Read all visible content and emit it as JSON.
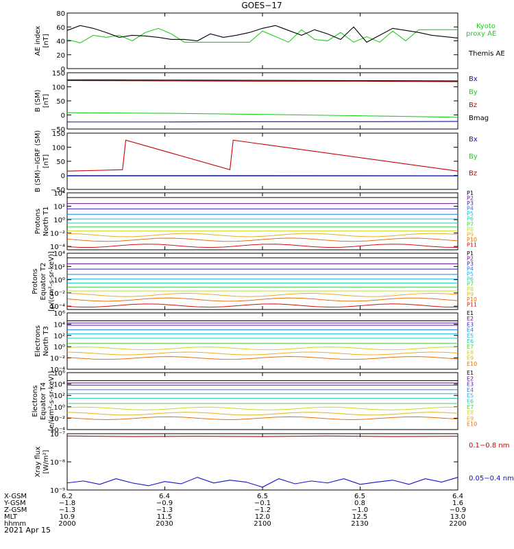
{
  "title": "GOES−17",
  "date_label": "2021 Apr 15",
  "colors": {
    "black": "#000000",
    "red": "#cc0000",
    "green": "#22cc22",
    "blue": "#1010c8",
    "spectrum": [
      "#000000",
      "#6a0d8a",
      "#3a1cc8",
      "#1f7ee0",
      "#18b8e8",
      "#20c8b0",
      "#40d040",
      "#c8d820",
      "#e8b020",
      "#e07010",
      "#d01010"
    ]
  },
  "chart_data": [
    {
      "type": "line",
      "name": "ae-index",
      "ylabel": [
        "AE index",
        "[nT]"
      ],
      "ylim": [
        0,
        80
      ],
      "yticks": [
        "0",
        "20",
        "40",
        "60",
        "80"
      ],
      "yvals": [
        0,
        20,
        40,
        60,
        80
      ],
      "scale": "linear",
      "xlim": [
        0,
        120
      ],
      "legend": [
        "Kyoto",
        "proxy AE",
        "Themis AE"
      ],
      "series": [
        {
          "name": "Kyoto proxy AE",
          "color": "green",
          "x": [
            0,
            4,
            8,
            12,
            16,
            20,
            24,
            28,
            32,
            36,
            40,
            44,
            48,
            52,
            56,
            60,
            64,
            68,
            72,
            76,
            80,
            84,
            88,
            92,
            96,
            100,
            104,
            108,
            112,
            116,
            120
          ],
          "y": [
            42,
            37,
            48,
            45,
            48,
            40,
            52,
            58,
            50,
            38,
            38,
            38,
            38,
            38,
            38,
            54,
            46,
            38,
            56,
            42,
            40,
            52,
            38,
            46,
            38,
            54,
            40,
            56,
            56,
            56,
            56
          ]
        },
        {
          "name": "Themis AE",
          "color": "black",
          "x": [
            0,
            4,
            8,
            12,
            16,
            20,
            24,
            28,
            32,
            36,
            40,
            44,
            48,
            52,
            56,
            60,
            64,
            68,
            72,
            76,
            80,
            84,
            88,
            92,
            96,
            100,
            104,
            108,
            112,
            116,
            120
          ],
          "y": [
            55,
            62,
            58,
            52,
            45,
            48,
            47,
            45,
            42,
            42,
            40,
            50,
            45,
            48,
            52,
            58,
            62,
            55,
            48,
            56,
            50,
            42,
            60,
            38,
            48,
            58,
            55,
            52,
            48,
            46,
            44
          ]
        }
      ]
    },
    {
      "type": "line",
      "name": "b-sm",
      "ylabel": [
        "B (SM)",
        "[nT]"
      ],
      "ylim": [
        -50,
        150
      ],
      "yticks": [
        "−50",
        "0",
        "50",
        "100",
        "150"
      ],
      "yvals": [
        -50,
        0,
        50,
        100,
        150
      ],
      "scale": "linear",
      "xlim": [
        0,
        120
      ],
      "legend": [
        "Bx",
        "By",
        "Bz",
        "Bmag"
      ],
      "series": [
        {
          "name": "Bz",
          "color": "red",
          "x": [
            0,
            30,
            60,
            90,
            120
          ],
          "y": [
            122,
            121,
            120,
            120,
            118
          ]
        },
        {
          "name": "Bmag",
          "color": "black",
          "x": [
            0,
            30,
            60,
            90,
            120
          ],
          "y": [
            125,
            124,
            123,
            122,
            121
          ]
        },
        {
          "name": "By",
          "color": "green",
          "x": [
            0,
            30,
            60,
            90,
            120
          ],
          "y": [
            8,
            6,
            2,
            -3,
            -8
          ]
        },
        {
          "name": "Bx",
          "color": "blue",
          "x": [
            0,
            30,
            60,
            90,
            120
          ],
          "y": [
            -25,
            -25,
            -24,
            -24,
            -23
          ]
        }
      ]
    },
    {
      "type": "line",
      "name": "b-minus-igrf",
      "ylabel": [
        "B (SM)−IGRF (SM)",
        "[nT]"
      ],
      "ylim": [
        -50,
        150
      ],
      "yticks": [
        "−50",
        "0",
        "50",
        "100",
        "150"
      ],
      "yvals": [
        -50,
        0,
        50,
        100,
        150
      ],
      "scale": "linear",
      "xlim": [
        0,
        120
      ],
      "legend": [
        "Bx",
        "By",
        "Bz"
      ],
      "series": [
        {
          "name": "Bz",
          "color": "red",
          "x": [
            0,
            17,
            18,
            50,
            51,
            120
          ],
          "y": [
            15,
            20,
            125,
            20,
            125,
            15
          ]
        },
        {
          "name": "By",
          "color": "green",
          "x": [
            0,
            60,
            120
          ],
          "y": [
            0,
            0,
            -1
          ]
        },
        {
          "name": "Bx",
          "color": "blue",
          "x": [
            0,
            60,
            120
          ],
          "y": [
            -2,
            -2,
            -2
          ]
        }
      ]
    },
    {
      "type": "line",
      "name": "protons-t1",
      "ylabel": [
        "Protons",
        "North T1"
      ],
      "ylim": [
        -4.5,
        4
      ],
      "yticks": [
        "10⁻⁴",
        "10⁻²",
        "10⁰",
        "10²",
        "10⁴"
      ],
      "yvals": [
        -4,
        -2,
        0,
        2,
        4
      ],
      "scale": "log",
      "xlim": [
        0,
        120
      ],
      "legend": [
        "P1",
        "P2",
        "P3",
        "P4",
        "P5",
        "P6",
        "P7",
        "P8",
        "P9",
        "P10",
        "P11"
      ],
      "levels": [
        3.3,
        2.4,
        1.6,
        0.8,
        0.1,
        -0.5,
        -1.1,
        -1.7,
        -2.3,
        -3.0,
        -3.9
      ]
    },
    {
      "type": "line",
      "name": "protons-t2",
      "ylabel": [
        "Protons",
        "Equator T2",
        "[p/(cm²-s-sr-keV)]"
      ],
      "ylim": [
        -4.5,
        4
      ],
      "yticks": [
        "10⁻⁴",
        "10⁻²",
        "10⁰",
        "10²",
        "10⁴"
      ],
      "yvals": [
        -4,
        -2,
        0,
        2,
        4
      ],
      "scale": "log",
      "xlim": [
        0,
        120
      ],
      "legend": [
        "P1",
        "P2",
        "P3",
        "P4",
        "P5",
        "P6",
        "P7",
        "P8",
        "P9",
        "P10",
        "P11"
      ],
      "levels": [
        3.3,
        2.4,
        1.6,
        0.8,
        0.1,
        -0.5,
        -1.1,
        -1.7,
        -2.3,
        -3.0,
        -3.9
      ]
    },
    {
      "type": "line",
      "name": "electrons-t3",
      "ylabel": [
        "Electrons",
        "North T3"
      ],
      "ylim": [
        -4,
        6
      ],
      "yticks": [
        "10⁻⁴",
        "10⁻²",
        "10⁰",
        "10²",
        "10⁴",
        "10⁶"
      ],
      "yvals": [
        -4,
        -2,
        0,
        2,
        4,
        6
      ],
      "scale": "log",
      "xlim": [
        0,
        120
      ],
      "legend": [
        "E1",
        "E2",
        "E3",
        "E4",
        "E5",
        "E6",
        "E7",
        "E8",
        "E9",
        "E10"
      ],
      "levels": [
        4.6,
        4.2,
        3.8,
        3.0,
        2.3,
        1.5,
        0.6,
        -0.3,
        -1.2,
        -2.0
      ]
    },
    {
      "type": "line",
      "name": "electrons-t4",
      "ylabel": [
        "Electrons",
        "Equator T4",
        "[e/(cm²-s-sr-keV)]"
      ],
      "ylim": [
        -4,
        6
      ],
      "yticks": [
        "10⁻⁴",
        "10⁻²",
        "10⁰",
        "10²",
        "10⁴",
        "10⁶"
      ],
      "yvals": [
        -4,
        -2,
        0,
        2,
        4,
        6
      ],
      "scale": "log",
      "xlim": [
        0,
        120
      ],
      "legend": [
        "E1",
        "E2",
        "E3",
        "E4",
        "E5",
        "E6",
        "E7",
        "E8",
        "E9",
        "E10"
      ],
      "levels": [
        4.6,
        4.2,
        3.8,
        3.0,
        2.3,
        1.5,
        0.6,
        -0.3,
        -1.2,
        -2.0
      ]
    },
    {
      "type": "line",
      "name": "xray-flux",
      "ylabel": [
        "Xray flux",
        "[W/m²]"
      ],
      "ylim": [
        -9,
        -7
      ],
      "yticks": [
        "10⁻⁹",
        "10⁻⁸",
        "10⁻⁷"
      ],
      "yvals": [
        -9,
        -8,
        -7
      ],
      "scale": "log",
      "xlim": [
        0,
        120
      ],
      "legend": [
        "0.1−0.8 nm",
        "0.05−0.4 nm"
      ],
      "series": [
        {
          "name": "0.1−0.8 nm",
          "color": "red",
          "x": [
            0,
            20,
            40,
            60,
            80,
            100,
            120
          ],
          "y": [
            -7.08,
            -7.1,
            -7.09,
            -7.1,
            -7.08,
            -7.1,
            -7.09
          ]
        },
        {
          "name": "0.05−0.4 nm",
          "color": "blue",
          "x": [
            0,
            5,
            10,
            15,
            20,
            25,
            30,
            35,
            40,
            45,
            50,
            55,
            60,
            65,
            70,
            75,
            80,
            85,
            90,
            95,
            100,
            105,
            110,
            115,
            120
          ],
          "y": [
            -8.75,
            -8.68,
            -8.8,
            -8.6,
            -8.75,
            -8.85,
            -8.7,
            -8.78,
            -8.55,
            -8.75,
            -8.65,
            -8.72,
            -8.9,
            -8.6,
            -8.78,
            -8.68,
            -8.75,
            -8.6,
            -8.8,
            -8.72,
            -8.65,
            -8.8,
            -8.6,
            -8.72,
            -8.55
          ]
        }
      ]
    }
  ],
  "orbit_table": {
    "row_labels": [
      "X-GSM",
      "Y-GSM",
      "Z-GSM",
      "MLT",
      "hhmm"
    ],
    "columns": [
      [
        "6.2",
        "−1.8",
        "−1.3",
        "10.9",
        "2000"
      ],
      [
        "6.4",
        "−0.9",
        "−1.3",
        "11.5",
        "2030"
      ],
      [
        "6.5",
        "−0.1",
        "−1.2",
        "12.0",
        "2100"
      ],
      [
        "6.5",
        "0.8",
        "−1.0",
        "12.5",
        "2130"
      ],
      [
        "6.4",
        "1.6",
        "−0.9",
        "13.0",
        "2200"
      ]
    ]
  }
}
